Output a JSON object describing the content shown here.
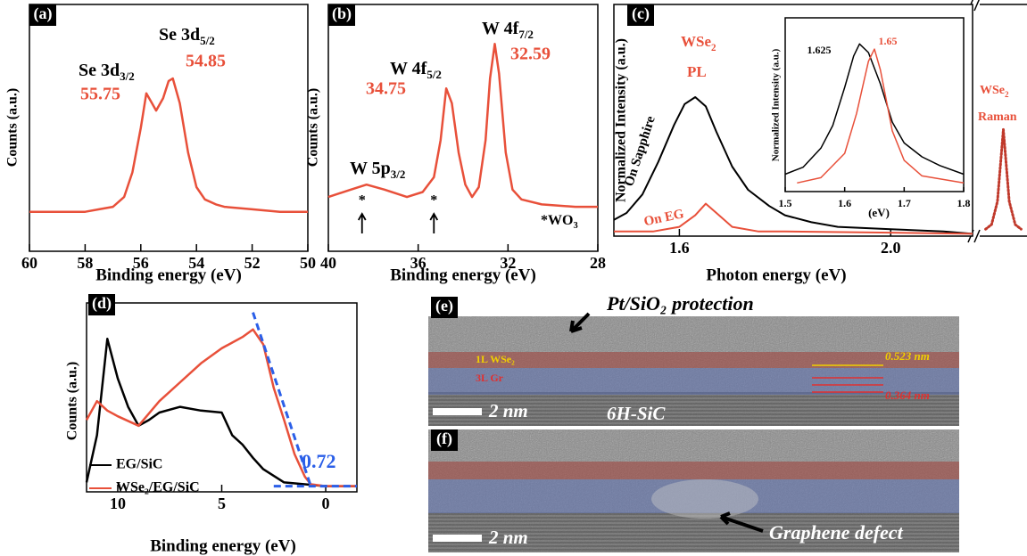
{
  "chart_data": [
    {
      "type": "line",
      "panel": "(a)",
      "xlabel": "Binding energy (eV)",
      "ylabel": "Counts (a.u.)",
      "xlim": [
        60,
        50
      ],
      "ylim": [
        0,
        100
      ],
      "xticks": [
        60,
        58,
        56,
        54,
        52,
        50
      ],
      "series": [
        {
          "color": "#e8503a",
          "x": [
            60,
            59,
            58,
            57.5,
            57,
            56.6,
            56.3,
            56,
            55.8,
            55.6,
            55.45,
            55.2,
            55,
            54.85,
            54.6,
            54.3,
            54,
            53.7,
            53.3,
            53,
            52,
            51,
            50
          ],
          "values": [
            16,
            16,
            16,
            17,
            18,
            22,
            32,
            50,
            64,
            60,
            57,
            62,
            69,
            70,
            60,
            40,
            26,
            21,
            19,
            18,
            17,
            16,
            16
          ]
        }
      ],
      "annotations": [
        {
          "text": "Se 3d",
          "sub": "3/2",
          "value": 55.75
        },
        {
          "text": "Se 3d",
          "sub": "5/2",
          "value": 54.85
        }
      ]
    },
    {
      "type": "line",
      "panel": "(b)",
      "xlabel": "Binding energy (eV)",
      "ylabel": "Counts (a.u.)",
      "xlim": [
        40,
        28
      ],
      "ylim": [
        0,
        100
      ],
      "xticks": [
        40,
        36,
        32,
        28
      ],
      "series": [
        {
          "color": "#e8503a",
          "x": [
            40,
            39,
            38.3,
            37.5,
            36.5,
            35.8,
            35.3,
            35,
            34.75,
            34.5,
            34.2,
            33.9,
            33.6,
            33.3,
            33,
            32.8,
            32.59,
            32.4,
            32.1,
            31.8,
            31.4,
            30.5,
            29,
            28
          ],
          "values": [
            22,
            25,
            27,
            25,
            22,
            24,
            30,
            45,
            66,
            60,
            40,
            27,
            22,
            26,
            45,
            70,
            84,
            72,
            40,
            25,
            21,
            19,
            18,
            18
          ]
        }
      ],
      "annotations": [
        {
          "text": "W 5p",
          "sub": "3/2"
        },
        {
          "text": "W 4f",
          "sub": "5/2",
          "value": 34.75
        },
        {
          "text": "W 4f",
          "sub": "7/2",
          "value": 32.59
        }
      ],
      "wo3_marker": "*",
      "wo3_positions": [
        38.5,
        35.3
      ],
      "note": {
        "text": "*WO",
        "sub": "3"
      }
    },
    {
      "type": "line",
      "panel": "(c)",
      "xlabel": "Photon energy (eV)",
      "ylabel": "Normalized Intensity (a.u.)",
      "xlim": [
        1.476,
        2.155
      ],
      "ylim": [
        0,
        100
      ],
      "xticks": [
        1.6,
        {
          "value": 2.0,
          "label": "2.0"
        }
      ],
      "series": [
        {
          "name": "On Sapphire",
          "color": "#000000",
          "x": [
            1.476,
            1.5,
            1.53,
            1.56,
            1.59,
            1.61,
            1.63,
            1.65,
            1.67,
            1.7,
            1.73,
            1.77,
            1.8,
            1.85,
            1.9,
            2.0,
            2.1,
            2.155
          ],
          "values": [
            7,
            10,
            18,
            32,
            48,
            57,
            60,
            56,
            45,
            30,
            20,
            13,
            9,
            6,
            4,
            3,
            2,
            1
          ]
        },
        {
          "name": "On EG",
          "color": "#e8503a",
          "x": [
            1.476,
            1.55,
            1.6,
            1.63,
            1.65,
            1.67,
            1.7,
            1.75,
            1.8,
            2.0,
            2.155
          ],
          "values": [
            2,
            2,
            4,
            9,
            14,
            10,
            4,
            2,
            2,
            1.5,
            1
          ]
        }
      ],
      "label": {
        "text": "WSe",
        "sub": "2",
        "line2": "PL"
      }
    },
    {
      "type": "line",
      "xlabel": "(eV)",
      "ylabel": "Normalized Intensity (a.u.)",
      "xlim": [
        1.5,
        1.8
      ],
      "ylim": [
        0,
        100
      ],
      "xticks": [
        1.5,
        1.6,
        1.7,
        1.8
      ],
      "series": [
        {
          "color": "#000000",
          "x": [
            1.5,
            1.53,
            1.56,
            1.58,
            1.6,
            1.615,
            1.625,
            1.64,
            1.66,
            1.68,
            1.7,
            1.73,
            1.76,
            1.8
          ],
          "values": [
            10,
            14,
            25,
            38,
            60,
            78,
            85,
            80,
            62,
            40,
            28,
            20,
            15,
            10
          ]
        },
        {
          "color": "#e8503a",
          "x": [
            1.52,
            1.56,
            1.6,
            1.62,
            1.64,
            1.65,
            1.66,
            1.68,
            1.7,
            1.73,
            1.8
          ],
          "values": [
            5,
            8,
            22,
            45,
            75,
            82,
            70,
            35,
            18,
            9,
            5
          ]
        }
      ],
      "annotations": [
        {
          "value": 1.625,
          "color": "#000000"
        },
        {
          "value": 1.65,
          "color": "#e8503a"
        }
      ]
    },
    {
      "type": "dotted",
      "xlim": [
        2.28,
        2.32
      ],
      "ylim": [
        0,
        100
      ],
      "series": [
        {
          "color": "#c0392b",
          "x": [
            2.285,
            2.29,
            2.295,
            2.3,
            2.305,
            2.31,
            2.315
          ],
          "values": [
            3,
            5,
            15,
            46,
            15,
            5,
            3
          ]
        }
      ],
      "label": {
        "text": "WSe",
        "sub": "2",
        "line2": "Raman"
      }
    },
    {
      "type": "line",
      "panel": "(d)",
      "xlabel": "Binding energy (eV)",
      "ylabel": "Counts (a.u.)",
      "xlim": [
        11.5,
        -1.5
      ],
      "ylim": [
        0,
        100
      ],
      "xticks": [
        10,
        5,
        0
      ],
      "series": [
        {
          "name": "EG/SiC",
          "color": "#000000",
          "x": [
            11.5,
            11,
            10.5,
            10,
            9.5,
            9,
            8.5,
            8,
            7,
            6,
            5,
            4.5,
            4,
            3.5,
            3,
            2,
            1,
            0,
            -1.5
          ],
          "values": [
            5,
            30,
            81,
            60,
            45,
            35,
            38,
            42,
            45,
            43,
            42,
            30,
            25,
            18,
            12,
            5,
            4,
            3,
            3
          ]
        },
        {
          "name": "WSe₂/EG/SiC",
          "color": "#e8503a",
          "x": [
            11.5,
            11,
            10.5,
            10,
            9,
            8,
            7,
            6,
            5,
            4,
            3.5,
            3,
            2.5,
            2,
            1.5,
            1,
            0.72,
            0,
            -1.5
          ],
          "values": [
            38,
            48,
            43,
            40,
            35,
            48,
            58,
            68,
            76,
            82,
            86,
            78,
            55,
            38,
            20,
            8,
            4,
            3,
            3
          ]
        }
      ],
      "fits": [
        {
          "color": "#2b5fe8",
          "x": [
            3.5,
            0.72
          ],
          "values": [
            95,
            3
          ]
        },
        {
          "color": "#2b5fe8",
          "x": [
            2.5,
            -1.5
          ],
          "values": [
            3,
            3
          ]
        }
      ],
      "annotation": {
        "value": 0.72,
        "color": "#2b5fe8"
      }
    }
  ],
  "tem": [
    {
      "panel": "(e)",
      "caption": "Pt/SiO₂ protection",
      "layer1": "1L WSe₂",
      "layer2": "3L Gr",
      "d1": "0.523 nm",
      "d2": "0.364 nm",
      "scale": "2 nm",
      "substrate": "6H-SiC"
    },
    {
      "panel": "(f)",
      "scale": "2 nm",
      "caption": "Graphene defect"
    }
  ]
}
